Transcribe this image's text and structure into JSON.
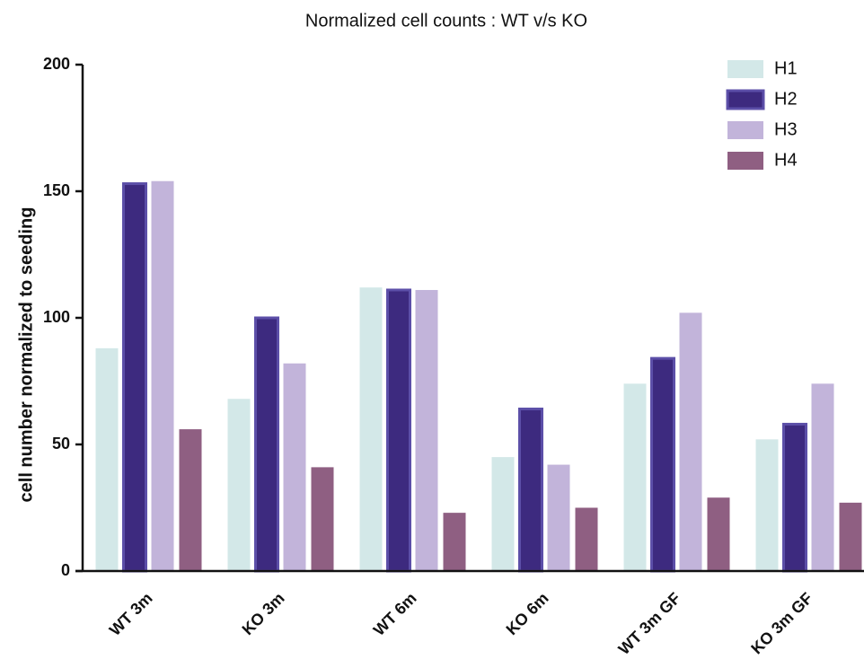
{
  "chart_data": {
    "type": "bar",
    "title": "Normalized cell counts : WT v/s KO",
    "y_label": "cell number normalized to seeding",
    "categories": [
      "WT 3m",
      "KO 3m",
      "WT 6m",
      "KO 6m",
      "WT 3m GF",
      "KO 3m GF"
    ],
    "series": [
      {
        "name": "H1",
        "color": "#d3e8e8",
        "values": [
          88,
          68,
          112,
          45,
          74,
          52
        ]
      },
      {
        "name": "H2",
        "color": "#3d2a7f",
        "values": [
          153,
          100,
          111,
          64,
          84,
          58
        ]
      },
      {
        "name": "H3",
        "color": "#c2b4da",
        "values": [
          154,
          82,
          111,
          42,
          102,
          74
        ]
      },
      {
        "name": "H4",
        "color": "#8f5f82",
        "values": [
          56,
          41,
          23,
          25,
          29,
          27
        ]
      }
    ],
    "ylim": [
      0,
      200
    ],
    "yticks": [
      0,
      50,
      100,
      150,
      200
    ],
    "legend": "top-right"
  }
}
